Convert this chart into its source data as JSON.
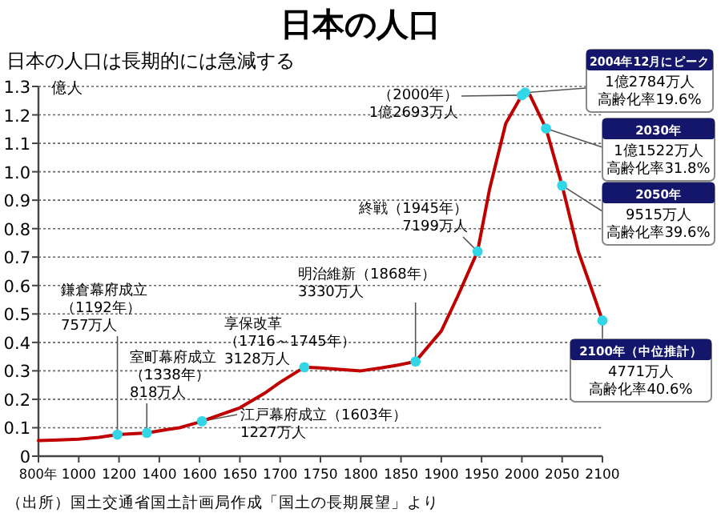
{
  "chart_data": [
    {
      "type": "line",
      "subtitle": "日本の人口は長期的には急減する",
      "ylabel": "億人",
      "series": [
        {
          "color": "#c00000",
          "x": [
            800,
            900,
            1000,
            1100,
            1192,
            1338,
            1450,
            1500,
            1550,
            1600
          ],
          "values": [
            0.055,
            0.057,
            0.06,
            0.066,
            0.0757,
            0.0818,
            0.095,
            0.1,
            0.11,
            0.12
          ]
        },
        {
          "type": "scatter",
          "color": "#33d6e6",
          "x": [
            1192,
            1338
          ],
          "values": [
            0.0757,
            0.0818
          ]
        }
      ],
      "xlim": [
        800,
        1600
      ],
      "xticks": [
        {
          "value": 800,
          "label": "800年"
        },
        1000,
        1200,
        1400,
        1600
      ],
      "ylim": [
        0,
        1.3
      ],
      "yticks": [
        0,
        0.1,
        0.2,
        0.3,
        0.4,
        0.5,
        0.6,
        0.7,
        0.8,
        0.9,
        {
          "value": 1.0,
          "label": "1.0"
        },
        1.1,
        1.2,
        1.3
      ],
      "grid": "y",
      "annotations": [
        {
          "text": "鎌倉幕府成立（1192年）757万人",
          "x": 1192,
          "y": 0.0757
        },
        {
          "text": "室町幕府成立（1338年）818万人",
          "x": 1338,
          "y": 0.0818
        },
        "（出所）国土交通省国土計画局作成「国土の長期展望」より"
      ]
    },
    {
      "type": "line",
      "title": "日本の人口",
      "series": [
        {
          "color": "#c00000",
          "x": [
            1600,
            1603,
            1650,
            1680,
            1700,
            1730,
            1750,
            1800,
            1825,
            1846,
            1868,
            1900,
            1920,
            1945,
            1960,
            1980,
            2000,
            2004,
            2010,
            2030,
            2050,
            2070,
            2085,
            2100
          ],
          "values": [
            0.12,
            0.1227,
            0.17,
            0.22,
            0.26,
            0.3128,
            0.31,
            0.3,
            0.31,
            0.32,
            0.333,
            0.44,
            0.56,
            0.7199,
            0.94,
            1.17,
            1.2693,
            1.2784,
            1.27,
            1.1522,
            0.9515,
            0.72,
            0.6,
            0.4771
          ]
        },
        {
          "type": "scatter",
          "color": "#33d6e6",
          "x": [
            1603,
            1730,
            1868,
            1945,
            2000,
            2004,
            2030,
            2050,
            2100
          ],
          "values": [
            0.1227,
            0.3128,
            0.333,
            0.7199,
            1.2693,
            1.2784,
            1.1522,
            0.9515,
            0.4771
          ]
        }
      ],
      "xlim": [
        1600,
        2100
      ],
      "xticks": [
        1650,
        1700,
        1750,
        1800,
        1850,
        1900,
        1950,
        2000,
        2050,
        2100
      ],
      "ylim": [
        0,
        1.3
      ],
      "tick_labels": "x",
      "grid": "y",
      "annotations": [
        {
          "text": "江戸幕府成立（1603年）1227万人",
          "x": 1603,
          "y": 0.1227
        },
        {
          "text": "享保改革（1716～1745年）3128万人",
          "x": 1730,
          "y": 0.3128
        },
        {
          "text": "明治維新（1868年）3330万人",
          "x": 1868,
          "y": 0.333
        },
        {
          "text": "終戦（1945年）7199万人",
          "x": 1945,
          "y": 0.7199
        },
        {
          "text": "（2000年）1億2693万人",
          "x": 2000,
          "y": 1.2693
        },
        {
          "text": "2004年12月にピーク1億2784万人高齢化率19.6%",
          "x": 2004,
          "y": 1.2784
        },
        {
          "text": "2030年1億1522万人高齢化率31.8%",
          "x": 2030,
          "y": 1.1522
        },
        {
          "text": "2050年9515万人高齢化率39.6%",
          "x": 2050,
          "y": 0.9515
        },
        {
          "text": "2100年（中位推計）4771万人高齢化率40.6%",
          "x": 2100,
          "y": 0.4771
        }
      ]
    }
  ]
}
